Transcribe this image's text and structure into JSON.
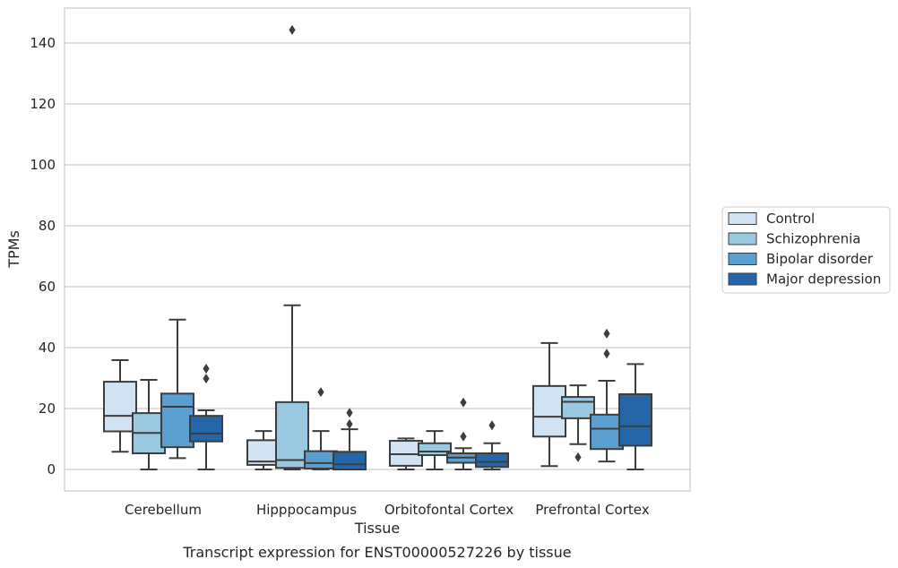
{
  "chart_data": {
    "type": "box",
    "title": "",
    "xlabel": "Tissue",
    "ylabel": "TPMs",
    "caption": "Transcript expression for ENST00000527226 by tissue",
    "ylim": [
      -7,
      152
    ],
    "yticks": [
      0,
      20,
      40,
      60,
      80,
      100,
      120,
      140
    ],
    "grid": "horizontal",
    "legend_position": "right",
    "categories": [
      "Cerebellum",
      "Hipppocampus",
      "Orbitofontal Cortex",
      "Prefrontal Cortex"
    ],
    "series": [
      {
        "name": "Control",
        "color": "#d1e2f2",
        "boxes": [
          {
            "whisker_low": 5.8,
            "q1": 12.5,
            "median": 17.6,
            "q3": 28.8,
            "whisker_high": 35.9,
            "outliers": []
          },
          {
            "whisker_low": 0.0,
            "q1": 1.5,
            "median": 2.6,
            "q3": 9.6,
            "whisker_high": 12.6,
            "outliers": []
          },
          {
            "whisker_low": 0.0,
            "q1": 1.2,
            "median": 5.0,
            "q3": 9.4,
            "whisker_high": 10.2,
            "outliers": []
          },
          {
            "whisker_low": 1.1,
            "q1": 10.8,
            "median": 17.3,
            "q3": 27.4,
            "whisker_high": 41.5,
            "outliers": []
          }
        ]
      },
      {
        "name": "Schizophrenia",
        "color": "#9ac8e0",
        "boxes": [
          {
            "whisker_low": 0.0,
            "q1": 5.3,
            "median": 12.0,
            "q3": 18.5,
            "whisker_high": 29.4,
            "outliers": []
          },
          {
            "whisker_low": 0.0,
            "q1": 0.5,
            "median": 3.1,
            "q3": 22.1,
            "whisker_high": 53.9,
            "outliers": [
              144.3
            ]
          },
          {
            "whisker_low": 0.0,
            "q1": 4.7,
            "median": 5.9,
            "q3": 8.6,
            "whisker_high": 12.6,
            "outliers": []
          },
          {
            "whisker_low": 8.3,
            "q1": 16.8,
            "median": 22.2,
            "q3": 23.8,
            "whisker_high": 27.6,
            "outliers": [
              4.0
            ]
          }
        ]
      },
      {
        "name": "Bipolar disorder",
        "color": "#5a9fcf",
        "boxes": [
          {
            "whisker_low": 3.7,
            "q1": 7.3,
            "median": 20.6,
            "q3": 24.9,
            "whisker_high": 49.2,
            "outliers": []
          },
          {
            "whisker_low": 0.0,
            "q1": 0.3,
            "median": 2.1,
            "q3": 6.0,
            "whisker_high": 12.6,
            "outliers": [
              25.4
            ]
          },
          {
            "whisker_low": 0.0,
            "q1": 2.2,
            "median": 3.9,
            "q3": 5.3,
            "whisker_high": 7.0,
            "outliers": [
              10.8,
              22.0
            ]
          },
          {
            "whisker_low": 2.6,
            "q1": 6.7,
            "median": 13.4,
            "q3": 18.0,
            "whisker_high": 29.1,
            "outliers": [
              38.0,
              44.6
            ]
          }
        ]
      },
      {
        "name": "Major depression",
        "color": "#2466a8",
        "boxes": [
          {
            "whisker_low": 0.0,
            "q1": 9.2,
            "median": 11.8,
            "q3": 17.6,
            "whisker_high": 19.4,
            "outliers": [
              29.8,
              33.1
            ]
          },
          {
            "whisker_low": 0.0,
            "q1": 0.0,
            "median": 1.7,
            "q3": 5.8,
            "whisker_high": 13.2,
            "outliers": [
              14.9,
              18.6
            ]
          },
          {
            "whisker_low": 0.0,
            "q1": 0.8,
            "median": 2.5,
            "q3": 5.3,
            "whisker_high": 8.6,
            "outliers": [
              14.5
            ]
          },
          {
            "whisker_low": 0.0,
            "q1": 7.8,
            "median": 14.2,
            "q3": 24.7,
            "whisker_high": 34.6,
            "outliers": []
          }
        ]
      }
    ]
  }
}
